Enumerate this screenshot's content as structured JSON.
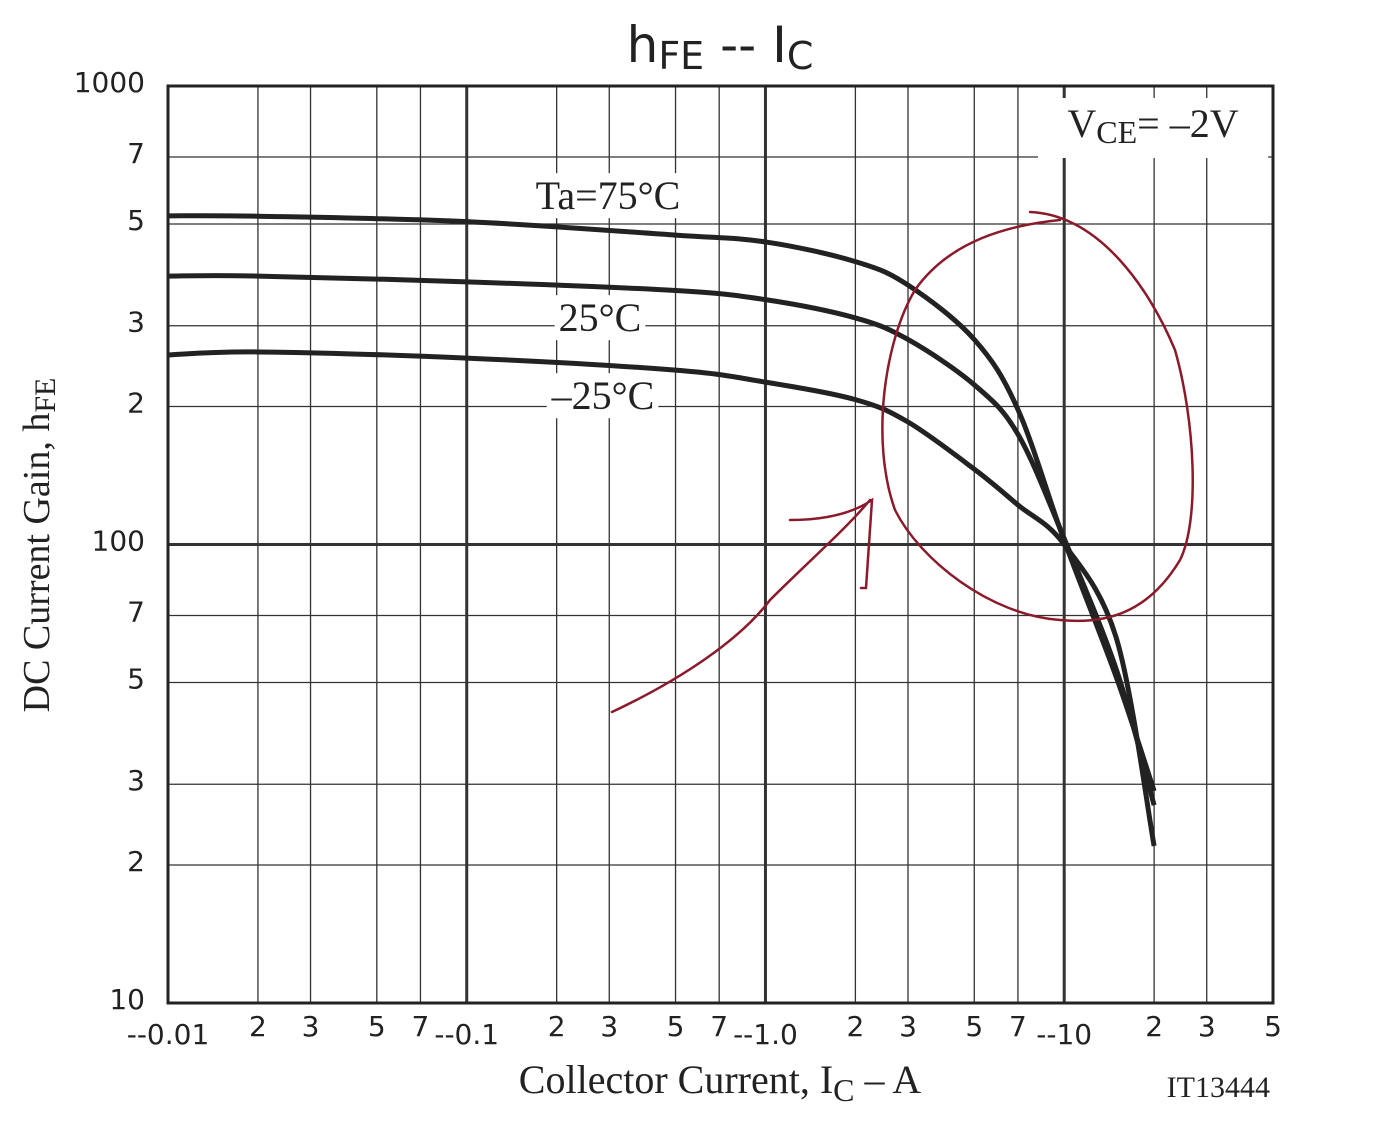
{
  "chart_data": {
    "type": "line",
    "title": [
      "h",
      "FE",
      " -- I",
      "C"
    ],
    "x_label": [
      "Collector Current, I",
      "C",
      "  –  A"
    ],
    "y_label": [
      "DC Current Gain, h",
      "FE"
    ],
    "condition": [
      "V",
      "CE",
      "= –2V"
    ],
    "figure_id": "IT13444",
    "x_log": true,
    "y_log": true,
    "grid": true,
    "xlim": [
      0.01,
      50
    ],
    "ylim": [
      10,
      1000
    ],
    "xticks": [
      {
        "value": 0.01,
        "label": "--0.01"
      },
      {
        "value": 0.02,
        "label": "2"
      },
      {
        "value": 0.03,
        "label": "3"
      },
      {
        "value": 0.05,
        "label": "5"
      },
      {
        "value": 0.07,
        "label": "7"
      },
      {
        "value": 0.1,
        "label": "--0.1"
      },
      {
        "value": 0.2,
        "label": "2"
      },
      {
        "value": 0.3,
        "label": "3"
      },
      {
        "value": 0.5,
        "label": "5"
      },
      {
        "value": 0.7,
        "label": "7"
      },
      {
        "value": 1,
        "label": "--1.0"
      },
      {
        "value": 2,
        "label": "2"
      },
      {
        "value": 3,
        "label": "3"
      },
      {
        "value": 5,
        "label": "5"
      },
      {
        "value": 7,
        "label": "7"
      },
      {
        "value": 10,
        "label": "--10"
      },
      {
        "value": 20,
        "label": "2"
      },
      {
        "value": 30,
        "label": "3"
      },
      {
        "value": 50,
        "label": "5"
      }
    ],
    "yticks": [
      1000,
      {
        "value": 700,
        "label": "7"
      },
      {
        "value": 500,
        "label": "5"
      },
      {
        "value": 300,
        "label": "3"
      },
      {
        "value": 200,
        "label": "2"
      },
      100,
      {
        "value": 70,
        "label": "7"
      },
      {
        "value": 50,
        "label": "5"
      },
      {
        "value": 30,
        "label": "3"
      },
      {
        "value": 20,
        "label": "2"
      },
      10
    ],
    "x": [
      0.01,
      0.02,
      0.1,
      0.5,
      1,
      2,
      3,
      5,
      7,
      10,
      15,
      20
    ],
    "series": [
      {
        "name": "Ta=75°C",
        "color": "#222222",
        "values": [
          521,
          520,
          506,
          473,
          457,
          414,
          368,
          280,
          197,
          102,
          51,
          29
        ]
      },
      {
        "name": "25°C",
        "color": "#222222",
        "values": [
          385,
          385,
          374,
          358,
          342,
          312,
          280,
          223,
          174,
          103,
          53,
          27
        ]
      },
      {
        "name": "–25°C",
        "color": "#222222",
        "values": [
          259,
          263,
          255,
          240,
          226,
          207,
          185,
          146,
          122,
          100,
          62,
          22
        ]
      }
    ]
  }
}
